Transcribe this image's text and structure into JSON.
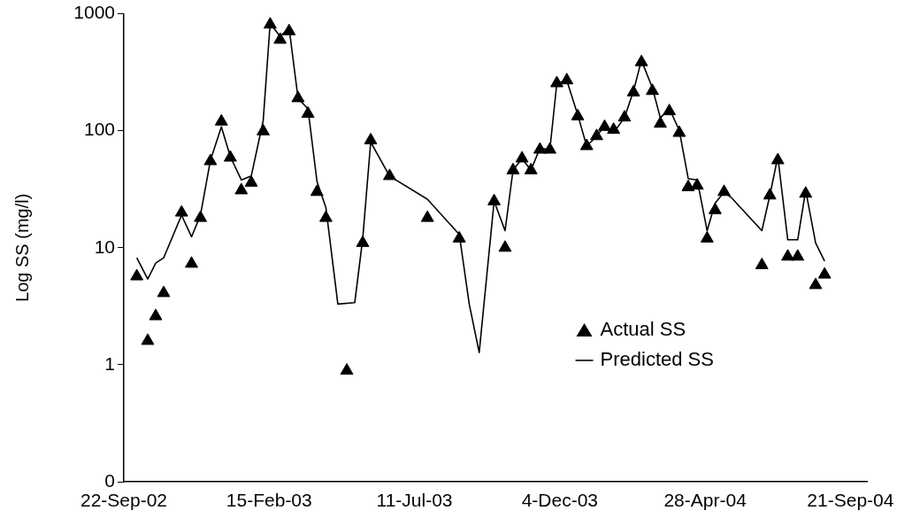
{
  "chart_data": {
    "type": "scatter",
    "ylabel": "Log SS (mg/l)",
    "log": "y",
    "grid": false,
    "legend": "bottom right",
    "marker": "triangle",
    "xlim": [
      "2002-09-22",
      "2004-10-08"
    ],
    "xticks": [
      {
        "value": "2002-09-22",
        "label": "22-Sep-02"
      },
      {
        "value": "2003-02-15",
        "label": "15-Feb-03"
      },
      {
        "value": "2003-07-11",
        "label": "11-Jul-03"
      },
      {
        "value": "2003-12-04",
        "label": "4-Dec-03"
      },
      {
        "value": "2004-04-28",
        "label": "28-Apr-04"
      },
      {
        "value": "2004-09-21",
        "label": "21-Sep-04"
      }
    ],
    "ylim": [
      0.1,
      1000
    ],
    "yticks": [
      {
        "value": 0.1,
        "label": "0"
      },
      1,
      10,
      100,
      1000
    ],
    "series": [
      {
        "name": "Actual SS",
        "color": "#000000",
        "x": [
          "2002-10-05",
          "2002-10-16",
          "2002-10-24",
          "2002-11-01",
          "2002-11-19",
          "2002-11-29",
          "2002-12-08",
          "2002-12-18",
          "2002-12-29",
          "2003-01-07",
          "2003-01-18",
          "2003-01-28",
          "2003-02-09",
          "2003-02-16",
          "2003-02-26",
          "2003-03-07",
          "2003-03-16",
          "2003-03-26",
          "2003-04-04",
          "2003-04-13",
          "2003-05-04",
          "2003-05-20",
          "2003-05-28",
          "2003-06-16",
          "2003-07-24",
          "2003-08-25",
          "2003-09-29",
          "2003-10-10",
          "2003-10-18",
          "2003-10-27",
          "2003-11-05",
          "2003-11-14",
          "2003-11-24",
          "2003-12-01",
          "2003-12-11",
          "2003-12-22",
          "2003-12-31",
          "2004-01-10",
          "2004-01-18",
          "2004-01-27",
          "2004-02-07",
          "2004-02-16",
          "2004-02-24",
          "2004-03-06",
          "2004-03-14",
          "2004-03-23",
          "2004-04-02",
          "2004-04-11",
          "2004-04-20",
          "2004-04-30",
          "2004-05-08",
          "2004-05-17",
          "2004-06-24",
          "2004-07-02",
          "2004-07-10",
          "2004-07-20",
          "2004-07-30",
          "2004-08-07",
          "2004-08-17",
          "2004-08-26"
        ],
        "values": [
          5.7,
          1.6,
          2.6,
          4.1,
          20,
          7.3,
          18,
          55,
          120,
          59,
          31,
          36,
          99,
          810,
          600,
          710,
          190,
          140,
          30,
          18,
          0.89,
          11,
          83,
          41,
          18,
          12,
          25,
          10,
          46,
          58,
          46,
          69,
          69,
          255,
          270,
          133,
          74,
          90,
          108,
          102,
          130,
          213,
          386,
          219,
          115,
          147,
          96,
          33,
          34,
          12,
          21,
          30,
          7.1,
          28,
          56,
          8.4,
          8.4,
          29,
          4.8,
          5.9
        ]
      },
      {
        "name": "Predicted SS",
        "type": "line",
        "marker": "none",
        "line_style": "solid",
        "color": "#000000",
        "x": [
          "2002-10-05",
          "2002-10-16",
          "2002-10-24",
          "2002-11-01",
          "2002-11-19",
          "2002-11-29",
          "2002-12-08",
          "2002-12-18",
          "2002-12-29",
          "2003-01-07",
          "2003-01-18",
          "2003-01-28",
          "2003-02-09",
          "2003-02-16",
          "2003-02-26",
          "2003-03-07",
          "2003-03-16",
          "2003-03-26",
          "2003-04-04",
          "2003-04-13",
          "2003-04-25",
          "2003-05-12",
          "2003-05-20",
          "2003-05-28",
          "2003-06-16",
          "2003-07-24",
          "2003-08-25",
          "2003-09-04",
          "2003-09-14",
          "2003-09-29",
          "2003-10-10",
          "2003-10-18",
          "2003-10-27",
          "2003-11-05",
          "2003-11-14",
          "2003-11-24",
          "2003-12-01",
          "2003-12-11",
          "2003-12-22",
          "2003-12-31",
          "2004-01-10",
          "2004-01-18",
          "2004-01-27",
          "2004-02-07",
          "2004-02-16",
          "2004-02-24",
          "2004-03-06",
          "2004-03-14",
          "2004-03-23",
          "2004-04-02",
          "2004-04-11",
          "2004-04-20",
          "2004-04-30",
          "2004-05-08",
          "2004-05-17",
          "2004-05-24",
          "2004-06-24",
          "2004-07-02",
          "2004-07-10",
          "2004-07-20",
          "2004-07-30",
          "2004-08-07",
          "2004-08-17",
          "2004-08-26"
        ],
        "values": [
          8.2,
          5.4,
          7.4,
          8.2,
          19,
          12.4,
          19,
          56,
          108,
          60,
          38,
          41,
          122,
          830,
          640,
          760,
          190,
          154,
          37,
          22,
          3.3,
          3.4,
          12,
          80,
          41,
          26,
          13,
          3.3,
          1.27,
          25,
          14,
          46,
          58,
          46,
          71,
          69,
          255,
          270,
          137,
          74,
          90,
          110,
          96,
          130,
          219,
          400,
          233,
          129,
          155,
          101,
          39,
          38,
          14,
          24,
          30,
          27,
          14,
          28,
          60,
          11.7,
          11.7,
          31,
          11,
          7.7
        ]
      }
    ]
  }
}
